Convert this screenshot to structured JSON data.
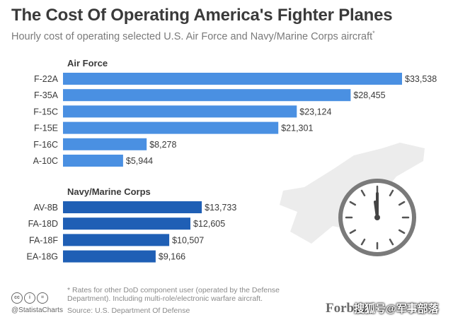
{
  "header": {
    "title": "The Cost Of Operating America's Fighter Planes",
    "subtitle": "Hourly cost of operating selected U.S. Air Force and Navy/Marine Corps aircraft",
    "subtitle_mark": "*"
  },
  "chart_data": {
    "type": "bar",
    "orientation": "horizontal",
    "value_prefix": "$",
    "groups": [
      {
        "name": "Air Force",
        "color": "#4a90e2",
        "categories": [
          "F-22A",
          "F-35A",
          "F-15C",
          "F-15E",
          "F-16C",
          "A-10C"
        ],
        "values": [
          33538,
          28455,
          23124,
          21301,
          8278,
          5944
        ],
        "labels": [
          "$33,538",
          "$28,455",
          "$23,124",
          "$21,301",
          "$8,278",
          "$5,944"
        ]
      },
      {
        "name": "Navy/Marine Corps",
        "color": "#1f5fb5",
        "categories": [
          "AV-8B",
          "FA-18D",
          "FA-18F",
          "EA-18G"
        ],
        "values": [
          13733,
          12605,
          10507,
          9166
        ],
        "labels": [
          "$13,733",
          "$12,605",
          "$10,507",
          "$9,166"
        ]
      }
    ],
    "xlim": [
      0,
      33538
    ],
    "grid": false,
    "legend": "none"
  },
  "footer": {
    "footnote": "* Rates for other DoD component user (operated by the Defense Department). Including multi-role/electronic warfare aircraft.",
    "source": "Source: U.S. Department Of Defense",
    "statista": "@StatistaCharts",
    "cc_icons": [
      "cc",
      "i",
      "="
    ],
    "forbes": "Forbes",
    "watermark": "搜狐号@军事部落"
  },
  "colors": {
    "air_force": "#4a90e2",
    "navy": "#1f5fb5",
    "silhouette": "#ececec"
  }
}
